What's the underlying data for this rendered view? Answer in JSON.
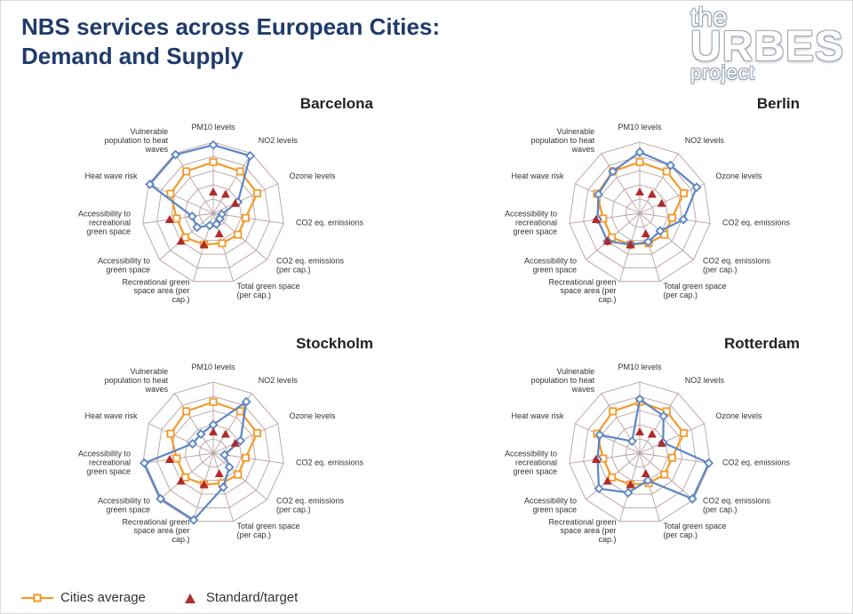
{
  "title_l1": "NBS services across European Cities:",
  "title_l2": "Demand and Supply",
  "logo": {
    "l1": "the",
    "l2": "URBES",
    "l3": "project"
  },
  "legend": {
    "cities_average": "Cities average",
    "standard_target": "Standard/target"
  },
  "style": {
    "title_color": "#1f3a6b",
    "background": "#ffffff",
    "grid_stroke": "#b9a0a0",
    "grid_stroke_width": 0.9,
    "label_color": "#333333",
    "label_fontsize": 9,
    "city_title_fontsize": 17,
    "city_title_weight": "bold",
    "city_title_color": "#222222",
    "rings": 5,
    "max": 5,
    "radius": 80,
    "series_city": {
      "stroke": "#5b85c6",
      "stroke_width": 2.2,
      "marker": "diamond",
      "marker_size": 4.2,
      "marker_fill": "#ffffff"
    },
    "series_avg": {
      "stroke": "#f39a2b",
      "stroke_width": 2.2,
      "marker": "square",
      "marker_size": 3.6,
      "marker_fill": "#ffffff"
    },
    "series_target": {
      "fill": "#b02a2a",
      "marker": "triangle",
      "marker_size": 5
    }
  },
  "axes": [
    "PM10 levels",
    "NO2 levels",
    "Ozone levels",
    "CO2 eq. emissions",
    "CO2 eq. emissions (per cap.)",
    "Total green space (per cap.)",
    "Recreational green space area (per cap.)",
    "Accessibility to  green space",
    "Accessibility to recreational  green space",
    "Heat wave risk",
    "Vulnerable population to heat waves"
  ],
  "cities_average_values": [
    3.6,
    3.5,
    3.4,
    2.3,
    2.3,
    2.2,
    2.3,
    2.6,
    2.6,
    3.3,
    3.5
  ],
  "target_values": [
    1.5,
    1.6,
    1.7,
    null,
    null,
    1.5,
    2.3,
    3.0,
    3.1,
    null,
    null
  ],
  "cities": [
    {
      "name": "Barcelona",
      "values": [
        4.8,
        4.8,
        1.9,
        0.6,
        0.6,
        0.8,
        0.9,
        1.5,
        1.5,
        4.9,
        4.9
      ]
    },
    {
      "name": "Berlin",
      "values": [
        4.3,
        4.0,
        4.4,
        3.1,
        1.9,
        2.1,
        2.3,
        3.0,
        3.0,
        3.2,
        3.5
      ]
    },
    {
      "name": "Stockholm",
      "values": [
        2.0,
        4.3,
        2.1,
        0.8,
        1.5,
        2.5,
        4.9,
        4.9,
        4.9,
        1.6,
        1.6
      ]
    },
    {
      "name": "Rotterdam",
      "values": [
        3.8,
        3.1,
        1.8,
        4.9,
        4.9,
        2.0,
        2.9,
        3.8,
        3.0,
        3.1,
        1.0
      ]
    }
  ]
}
